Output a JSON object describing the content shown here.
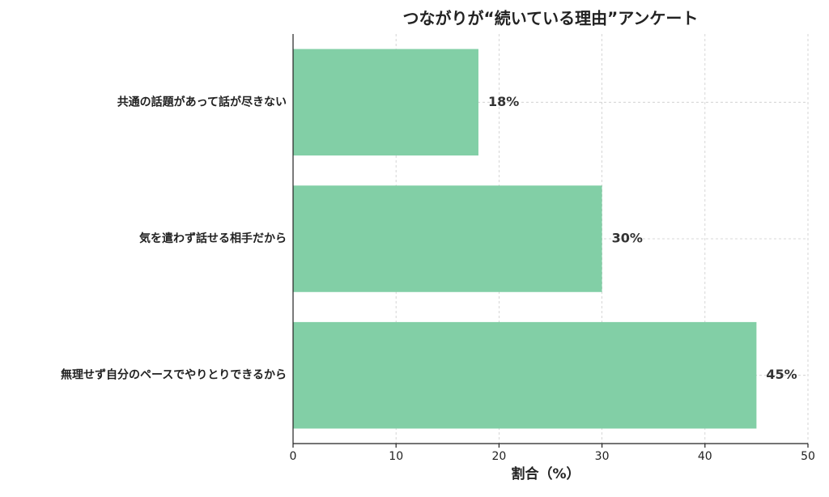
{
  "chart_data": {
    "type": "barh",
    "title": "つながりが“続いている理由”アンケート",
    "x_label": "割合（%）",
    "categories": [
      "共通の話題があって話が尽きない",
      "気を遣わず話せる相手だから",
      "無理せず自分のペースでやりとりできるから"
    ],
    "values": [
      18,
      30,
      45
    ],
    "value_labels": [
      "18%",
      "30%",
      "45%"
    ],
    "color": "#82cfa6",
    "xlim": [
      0,
      50
    ],
    "xticks": [
      0,
      10,
      20,
      30,
      40,
      50
    ],
    "grid": true
  }
}
